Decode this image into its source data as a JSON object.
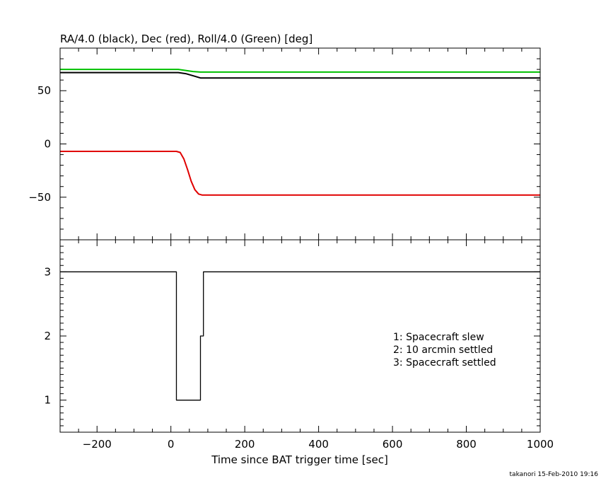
{
  "chart_data": [
    {
      "type": "line",
      "title": "RA/4.0 (black), Dec (red), Roll/4.0 (Green) [deg]",
      "xlim": [
        -300,
        1000
      ],
      "ylim": [
        -90,
        90
      ],
      "yticks": [
        -50,
        0,
        50
      ],
      "ytick_labels": [
        "−50",
        "0",
        "50"
      ],
      "series": [
        {
          "name": "RA/4.0",
          "color": "#000000",
          "x": [
            -300,
            20,
            40,
            60,
            80,
            1000
          ],
          "y": [
            67,
            67,
            66,
            64,
            62,
            62
          ]
        },
        {
          "name": "Dec",
          "color": "#e00000",
          "x": [
            -300,
            15,
            25,
            35,
            45,
            55,
            65,
            75,
            85,
            1000
          ],
          "y": [
            -7,
            -7,
            -8,
            -14,
            -24,
            -35,
            -43,
            -47,
            -48,
            -48
          ]
        },
        {
          "name": "Roll/4.0",
          "color": "#00c000",
          "x": [
            -300,
            20,
            40,
            60,
            80,
            1000
          ],
          "y": [
            70,
            70,
            69,
            68,
            67.5,
            67.5
          ]
        }
      ]
    },
    {
      "type": "line",
      "xlabel": "Time since BAT trigger time [sec]",
      "xlim": [
        -300,
        1000
      ],
      "ylim": [
        0.5,
        3.5
      ],
      "yticks": [
        1,
        2,
        3
      ],
      "ytick_labels": [
        "1",
        "2",
        "3"
      ],
      "xticks": [
        -200,
        0,
        200,
        400,
        600,
        800,
        1000
      ],
      "xtick_labels": [
        "−200",
        "0",
        "200",
        "400",
        "600",
        "800",
        "1000"
      ],
      "series": [
        {
          "color": "#000000",
          "step": true,
          "x": [
            -300,
            15,
            15,
            80,
            80,
            88,
            88,
            1000
          ],
          "y": [
            3,
            3,
            1,
            1,
            2,
            2,
            3,
            3
          ]
        }
      ],
      "annotations": [
        "1: Spacecraft slew",
        "2: 10 arcmin settled",
        "3: Spacecraft settled"
      ]
    }
  ],
  "footer": "takanori 15-Feb-2010 19:16"
}
